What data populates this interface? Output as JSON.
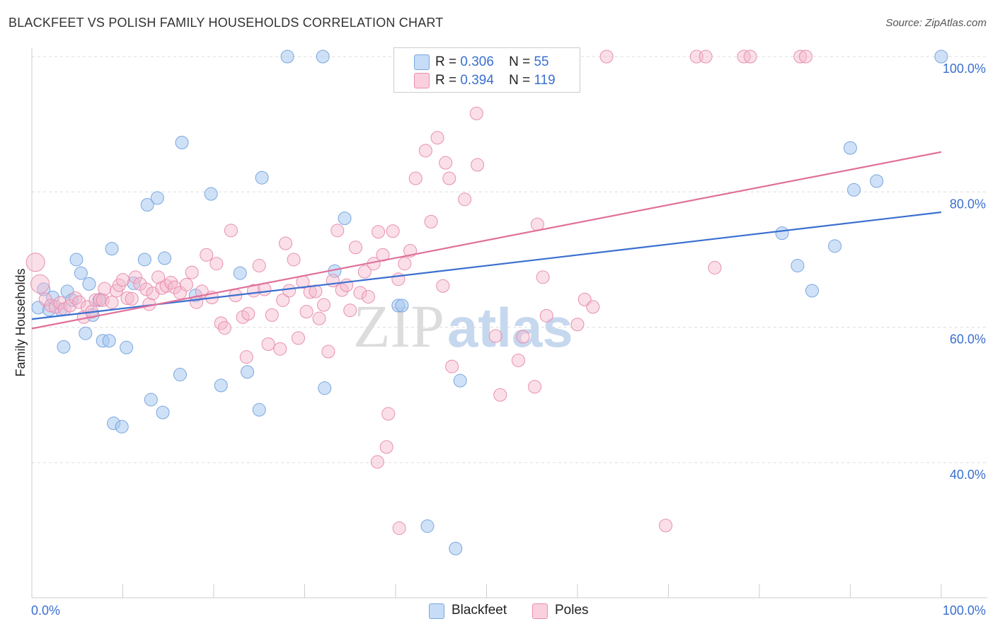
{
  "title": "BLACKFEET VS POLISH FAMILY HOUSEHOLDS CORRELATION CHART",
  "source": "Source: ZipAtlas.com",
  "watermark": {
    "zip": "ZIP",
    "atlas": "atlas"
  },
  "legend": {
    "r_label": "R =",
    "n_label": "N =",
    "rows": [
      {
        "r": "0.306",
        "n": "55",
        "color": "#a8c8f0"
      },
      {
        "r": "0.394",
        "n": "119",
        "color": "#f5b8cc"
      }
    ]
  },
  "colors": {
    "blackfeet_fill": "#a8c8f0",
    "blackfeet_line": "#3a6fd0",
    "poles_fill": "#f5b8cc",
    "poles_line": "#e0709a",
    "tick_label": "#3a6fd0"
  },
  "chart_data": {
    "type": "scatter",
    "title": "BLACKFEET VS POLISH FAMILY HOUSEHOLDS CORRELATION CHART",
    "xlabel": "",
    "ylabel": "Family Households",
    "xlim": [
      0,
      100
    ],
    "ylim": [
      20,
      102
    ],
    "x_tick_labels": [
      "0.0%",
      "100.0%"
    ],
    "y_ticks": [
      40,
      60,
      80,
      100
    ],
    "y_tick_labels": [
      "40.0%",
      "60.0%",
      "80.0%",
      "100.0%"
    ],
    "grid": true,
    "legend_position": "top-center",
    "series": [
      {
        "name": "Blackfeet",
        "color": "#a8c8f0",
        "trend": {
          "x": [
            0,
            100
          ],
          "y": [
            61.2,
            77.0
          ]
        },
        "points": [
          [
            0.7,
            62.9
          ],
          [
            1.3,
            65.6
          ],
          [
            1.9,
            62.6
          ],
          [
            2.3,
            64.4
          ],
          [
            3.2,
            62.6
          ],
          [
            3.5,
            57.1
          ],
          [
            3.9,
            65.3
          ],
          [
            4.4,
            64.0
          ],
          [
            4.9,
            70.0
          ],
          [
            5.4,
            68.0
          ],
          [
            5.9,
            59.1
          ],
          [
            6.3,
            66.4
          ],
          [
            6.7,
            61.8
          ],
          [
            7.4,
            64.0
          ],
          [
            7.8,
            58.0
          ],
          [
            8.5,
            58.0
          ],
          [
            8.8,
            71.6
          ],
          [
            9.0,
            45.8
          ],
          [
            9.9,
            45.3
          ],
          [
            10.4,
            57.0
          ],
          [
            11.2,
            66.5
          ],
          [
            12.4,
            70.0
          ],
          [
            12.7,
            78.1
          ],
          [
            13.1,
            49.3
          ],
          [
            13.8,
            79.1
          ],
          [
            14.4,
            47.4
          ],
          [
            14.6,
            70.2
          ],
          [
            16.3,
            53.0
          ],
          [
            16.5,
            87.3
          ],
          [
            18.0,
            64.7
          ],
          [
            19.7,
            79.7
          ],
          [
            20.8,
            51.4
          ],
          [
            22.9,
            68.0
          ],
          [
            23.7,
            53.4
          ],
          [
            25.0,
            47.8
          ],
          [
            25.3,
            82.1
          ],
          [
            28.1,
            100.0
          ],
          [
            32.0,
            100.0
          ],
          [
            32.2,
            51.0
          ],
          [
            33.3,
            68.3
          ],
          [
            34.4,
            76.1
          ],
          [
            40.3,
            63.2
          ],
          [
            40.7,
            63.2
          ],
          [
            43.5,
            30.6
          ],
          [
            46.6,
            27.3
          ],
          [
            47.1,
            52.1
          ],
          [
            82.5,
            73.9
          ],
          [
            84.2,
            69.1
          ],
          [
            85.8,
            65.4
          ],
          [
            88.3,
            72.0
          ],
          [
            90.0,
            86.5
          ],
          [
            90.4,
            80.3
          ],
          [
            92.9,
            81.6
          ],
          [
            100.0,
            100.0
          ]
        ]
      },
      {
        "name": "Poles",
        "color": "#f5b8cc",
        "trend": {
          "x": [
            0,
            100
          ],
          "y": [
            59.8,
            85.9
          ]
        },
        "points": [
          [
            0.4,
            69.6
          ],
          [
            0.9,
            66.4
          ],
          [
            1.5,
            64.1
          ],
          [
            2.1,
            63.2
          ],
          [
            2.6,
            63.0
          ],
          [
            3.1,
            63.6
          ],
          [
            3.6,
            62.7
          ],
          [
            4.2,
            63.2
          ],
          [
            4.8,
            64.3
          ],
          [
            5.2,
            63.7
          ],
          [
            5.7,
            61.5
          ],
          [
            6.1,
            63.0
          ],
          [
            6.6,
            62.3
          ],
          [
            7.0,
            64.0
          ],
          [
            7.5,
            64.1
          ],
          [
            7.8,
            64.0
          ],
          [
            8.0,
            65.7
          ],
          [
            8.8,
            63.7
          ],
          [
            9.3,
            65.4
          ],
          [
            9.6,
            66.2
          ],
          [
            10.0,
            67.0
          ],
          [
            10.5,
            64.3
          ],
          [
            11.0,
            64.2
          ],
          [
            11.4,
            67.4
          ],
          [
            11.9,
            66.4
          ],
          [
            12.6,
            65.6
          ],
          [
            12.9,
            63.4
          ],
          [
            13.3,
            65.0
          ],
          [
            13.9,
            67.4
          ],
          [
            14.3,
            65.8
          ],
          [
            14.8,
            66.1
          ],
          [
            15.3,
            66.6
          ],
          [
            15.7,
            65.9
          ],
          [
            16.3,
            65.1
          ],
          [
            17.0,
            66.3
          ],
          [
            17.6,
            68.1
          ],
          [
            18.1,
            63.7
          ],
          [
            18.7,
            65.3
          ],
          [
            19.2,
            70.7
          ],
          [
            19.8,
            64.4
          ],
          [
            20.3,
            69.4
          ],
          [
            20.8,
            60.6
          ],
          [
            21.2,
            59.9
          ],
          [
            21.9,
            74.3
          ],
          [
            22.4,
            64.7
          ],
          [
            23.2,
            61.5
          ],
          [
            23.6,
            55.6
          ],
          [
            23.8,
            62.0
          ],
          [
            24.4,
            65.4
          ],
          [
            25.0,
            69.1
          ],
          [
            25.6,
            65.6
          ],
          [
            26.0,
            57.5
          ],
          [
            26.4,
            61.8
          ],
          [
            27.3,
            56.8
          ],
          [
            27.6,
            64.0
          ],
          [
            27.9,
            72.4
          ],
          [
            28.3,
            65.4
          ],
          [
            28.8,
            70.0
          ],
          [
            29.3,
            58.4
          ],
          [
            29.8,
            66.7
          ],
          [
            30.2,
            62.3
          ],
          [
            30.6,
            65.2
          ],
          [
            31.2,
            65.3
          ],
          [
            31.6,
            61.3
          ],
          [
            32.1,
            63.3
          ],
          [
            32.6,
            56.4
          ],
          [
            33.1,
            66.9
          ],
          [
            33.6,
            74.3
          ],
          [
            34.1,
            65.5
          ],
          [
            34.6,
            66.2
          ],
          [
            35.0,
            62.5
          ],
          [
            35.6,
            71.8
          ],
          [
            36.1,
            65.1
          ],
          [
            36.6,
            68.2
          ],
          [
            37.0,
            64.5
          ],
          [
            37.6,
            69.4
          ],
          [
            38.1,
            74.1
          ],
          [
            38.6,
            70.7
          ],
          [
            39.2,
            47.2
          ],
          [
            38.0,
            40.1
          ],
          [
            39.0,
            42.3
          ],
          [
            39.7,
            74.2
          ],
          [
            40.3,
            67.1
          ],
          [
            40.4,
            30.3
          ],
          [
            41.0,
            69.4
          ],
          [
            41.6,
            71.3
          ],
          [
            42.2,
            82.0
          ],
          [
            43.3,
            86.1
          ],
          [
            43.9,
            75.6
          ],
          [
            44.6,
            88.0
          ],
          [
            45.2,
            66.1
          ],
          [
            45.5,
            84.3
          ],
          [
            45.9,
            82.0
          ],
          [
            46.2,
            54.2
          ],
          [
            47.6,
            78.9
          ],
          [
            48.9,
            91.6
          ],
          [
            49.0,
            84.0
          ],
          [
            51.0,
            58.7
          ],
          [
            51.5,
            50.0
          ],
          [
            52.0,
            100.0
          ],
          [
            53.5,
            55.1
          ],
          [
            54.0,
            58.6
          ],
          [
            55.3,
            51.2
          ],
          [
            55.6,
            75.2
          ],
          [
            56.2,
            67.4
          ],
          [
            56.6,
            61.7
          ],
          [
            60.0,
            60.4
          ],
          [
            60.8,
            64.1
          ],
          [
            61.7,
            63.0
          ],
          [
            63.2,
            100.0
          ],
          [
            69.7,
            30.7
          ],
          [
            73.1,
            100.0
          ],
          [
            74.1,
            100.0
          ],
          [
            75.1,
            68.8
          ],
          [
            78.3,
            100.0
          ],
          [
            79.0,
            100.0
          ],
          [
            84.5,
            100.0
          ],
          [
            85.1,
            100.0
          ]
        ]
      }
    ]
  }
}
